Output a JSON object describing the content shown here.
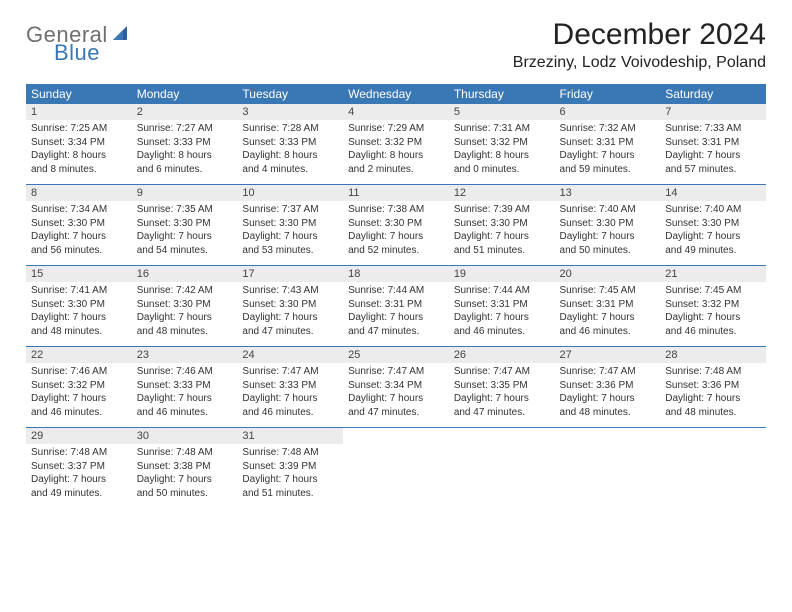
{
  "logo": {
    "word1": "General",
    "word2": "Blue"
  },
  "title": "December 2024",
  "location": "Brzeziny, Lodz Voivodeship, Poland",
  "colors": {
    "header_bg": "#3a78b5",
    "header_text": "#ffffff",
    "daynum_bg": "#ececec",
    "logo_gray": "#6f6f6f",
    "logo_blue": "#3a78b5"
  },
  "typography": {
    "title_fontsize": 30,
    "location_fontsize": 16,
    "dow_fontsize": 12,
    "daynum_fontsize": 11,
    "detail_fontsize": 10
  },
  "days_of_week": [
    "Sunday",
    "Monday",
    "Tuesday",
    "Wednesday",
    "Thursday",
    "Friday",
    "Saturday"
  ],
  "weeks": [
    [
      {
        "n": "1",
        "sunrise": "Sunrise: 7:25 AM",
        "sunset": "Sunset: 3:34 PM",
        "d1": "Daylight: 8 hours",
        "d2": "and 8 minutes."
      },
      {
        "n": "2",
        "sunrise": "Sunrise: 7:27 AM",
        "sunset": "Sunset: 3:33 PM",
        "d1": "Daylight: 8 hours",
        "d2": "and 6 minutes."
      },
      {
        "n": "3",
        "sunrise": "Sunrise: 7:28 AM",
        "sunset": "Sunset: 3:33 PM",
        "d1": "Daylight: 8 hours",
        "d2": "and 4 minutes."
      },
      {
        "n": "4",
        "sunrise": "Sunrise: 7:29 AM",
        "sunset": "Sunset: 3:32 PM",
        "d1": "Daylight: 8 hours",
        "d2": "and 2 minutes."
      },
      {
        "n": "5",
        "sunrise": "Sunrise: 7:31 AM",
        "sunset": "Sunset: 3:32 PM",
        "d1": "Daylight: 8 hours",
        "d2": "and 0 minutes."
      },
      {
        "n": "6",
        "sunrise": "Sunrise: 7:32 AM",
        "sunset": "Sunset: 3:31 PM",
        "d1": "Daylight: 7 hours",
        "d2": "and 59 minutes."
      },
      {
        "n": "7",
        "sunrise": "Sunrise: 7:33 AM",
        "sunset": "Sunset: 3:31 PM",
        "d1": "Daylight: 7 hours",
        "d2": "and 57 minutes."
      }
    ],
    [
      {
        "n": "8",
        "sunrise": "Sunrise: 7:34 AM",
        "sunset": "Sunset: 3:30 PM",
        "d1": "Daylight: 7 hours",
        "d2": "and 56 minutes."
      },
      {
        "n": "9",
        "sunrise": "Sunrise: 7:35 AM",
        "sunset": "Sunset: 3:30 PM",
        "d1": "Daylight: 7 hours",
        "d2": "and 54 minutes."
      },
      {
        "n": "10",
        "sunrise": "Sunrise: 7:37 AM",
        "sunset": "Sunset: 3:30 PM",
        "d1": "Daylight: 7 hours",
        "d2": "and 53 minutes."
      },
      {
        "n": "11",
        "sunrise": "Sunrise: 7:38 AM",
        "sunset": "Sunset: 3:30 PM",
        "d1": "Daylight: 7 hours",
        "d2": "and 52 minutes."
      },
      {
        "n": "12",
        "sunrise": "Sunrise: 7:39 AM",
        "sunset": "Sunset: 3:30 PM",
        "d1": "Daylight: 7 hours",
        "d2": "and 51 minutes."
      },
      {
        "n": "13",
        "sunrise": "Sunrise: 7:40 AM",
        "sunset": "Sunset: 3:30 PM",
        "d1": "Daylight: 7 hours",
        "d2": "and 50 minutes."
      },
      {
        "n": "14",
        "sunrise": "Sunrise: 7:40 AM",
        "sunset": "Sunset: 3:30 PM",
        "d1": "Daylight: 7 hours",
        "d2": "and 49 minutes."
      }
    ],
    [
      {
        "n": "15",
        "sunrise": "Sunrise: 7:41 AM",
        "sunset": "Sunset: 3:30 PM",
        "d1": "Daylight: 7 hours",
        "d2": "and 48 minutes."
      },
      {
        "n": "16",
        "sunrise": "Sunrise: 7:42 AM",
        "sunset": "Sunset: 3:30 PM",
        "d1": "Daylight: 7 hours",
        "d2": "and 48 minutes."
      },
      {
        "n": "17",
        "sunrise": "Sunrise: 7:43 AM",
        "sunset": "Sunset: 3:30 PM",
        "d1": "Daylight: 7 hours",
        "d2": "and 47 minutes."
      },
      {
        "n": "18",
        "sunrise": "Sunrise: 7:44 AM",
        "sunset": "Sunset: 3:31 PM",
        "d1": "Daylight: 7 hours",
        "d2": "and 47 minutes."
      },
      {
        "n": "19",
        "sunrise": "Sunrise: 7:44 AM",
        "sunset": "Sunset: 3:31 PM",
        "d1": "Daylight: 7 hours",
        "d2": "and 46 minutes."
      },
      {
        "n": "20",
        "sunrise": "Sunrise: 7:45 AM",
        "sunset": "Sunset: 3:31 PM",
        "d1": "Daylight: 7 hours",
        "d2": "and 46 minutes."
      },
      {
        "n": "21",
        "sunrise": "Sunrise: 7:45 AM",
        "sunset": "Sunset: 3:32 PM",
        "d1": "Daylight: 7 hours",
        "d2": "and 46 minutes."
      }
    ],
    [
      {
        "n": "22",
        "sunrise": "Sunrise: 7:46 AM",
        "sunset": "Sunset: 3:32 PM",
        "d1": "Daylight: 7 hours",
        "d2": "and 46 minutes."
      },
      {
        "n": "23",
        "sunrise": "Sunrise: 7:46 AM",
        "sunset": "Sunset: 3:33 PM",
        "d1": "Daylight: 7 hours",
        "d2": "and 46 minutes."
      },
      {
        "n": "24",
        "sunrise": "Sunrise: 7:47 AM",
        "sunset": "Sunset: 3:33 PM",
        "d1": "Daylight: 7 hours",
        "d2": "and 46 minutes."
      },
      {
        "n": "25",
        "sunrise": "Sunrise: 7:47 AM",
        "sunset": "Sunset: 3:34 PM",
        "d1": "Daylight: 7 hours",
        "d2": "and 47 minutes."
      },
      {
        "n": "26",
        "sunrise": "Sunrise: 7:47 AM",
        "sunset": "Sunset: 3:35 PM",
        "d1": "Daylight: 7 hours",
        "d2": "and 47 minutes."
      },
      {
        "n": "27",
        "sunrise": "Sunrise: 7:47 AM",
        "sunset": "Sunset: 3:36 PM",
        "d1": "Daylight: 7 hours",
        "d2": "and 48 minutes."
      },
      {
        "n": "28",
        "sunrise": "Sunrise: 7:48 AM",
        "sunset": "Sunset: 3:36 PM",
        "d1": "Daylight: 7 hours",
        "d2": "and 48 minutes."
      }
    ],
    [
      {
        "n": "29",
        "sunrise": "Sunrise: 7:48 AM",
        "sunset": "Sunset: 3:37 PM",
        "d1": "Daylight: 7 hours",
        "d2": "and 49 minutes."
      },
      {
        "n": "30",
        "sunrise": "Sunrise: 7:48 AM",
        "sunset": "Sunset: 3:38 PM",
        "d1": "Daylight: 7 hours",
        "d2": "and 50 minutes."
      },
      {
        "n": "31",
        "sunrise": "Sunrise: 7:48 AM",
        "sunset": "Sunset: 3:39 PM",
        "d1": "Daylight: 7 hours",
        "d2": "and 51 minutes."
      },
      null,
      null,
      null,
      null
    ]
  ]
}
